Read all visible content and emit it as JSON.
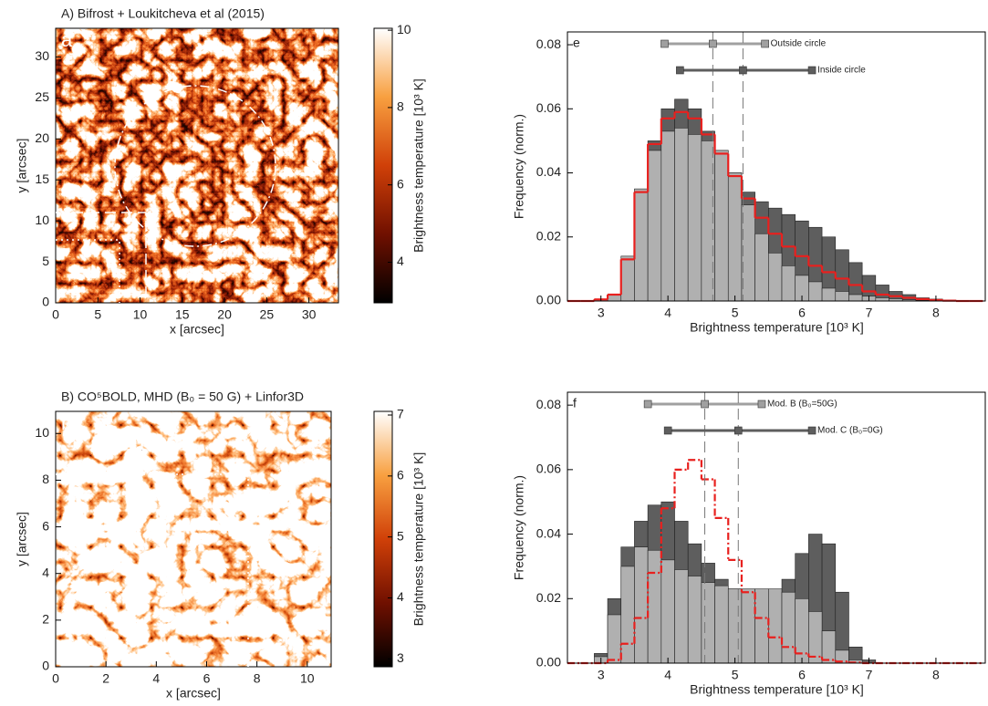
{
  "chart_data": [
    {
      "type": "image",
      "title": "A) Bifrost + Loukitcheva et al (2015)",
      "panel_label": "a",
      "xlabel": "x [arcsec]",
      "ylabel": "y [arcsec]",
      "xlim": [
        0,
        33.5
      ],
      "ylim": [
        0,
        33.5
      ],
      "xticks": [
        0,
        5,
        10,
        15,
        20,
        25,
        30
      ],
      "yticks": [
        0,
        5,
        10,
        15,
        20,
        25,
        30
      ],
      "colorbar_label": "Brightness temperature [10³ K]",
      "clim": [
        2.95,
        10.05
      ],
      "cticks": [
        4,
        6,
        8,
        10
      ]
    },
    {
      "type": "histogram",
      "panel_label": "e",
      "xlabel": "Brightness temperature [10³ K]",
      "ylabel": "Frequency (norm.)",
      "xlim": [
        2.5,
        8.75
      ],
      "ylim": [
        0,
        0.084
      ],
      "xticks": [
        3,
        4,
        5,
        6,
        7,
        8
      ],
      "yticks": [
        {
          "value": 0,
          "label": "0.00"
        },
        {
          "value": 0.02,
          "label": "0.02"
        },
        {
          "value": 0.04,
          "label": "0.04"
        },
        {
          "value": 0.06,
          "label": "0.06"
        },
        {
          "value": 0.08,
          "label": "0.08"
        }
      ],
      "bins": [
        2.5,
        2.7,
        2.9,
        3.1,
        3.3,
        3.5,
        3.7,
        3.9,
        4.1,
        4.3,
        4.5,
        4.7,
        4.9,
        5.1,
        5.3,
        5.5,
        5.7,
        5.9,
        6.1,
        6.3,
        6.5,
        6.7,
        6.9,
        7.1,
        7.3,
        7.5,
        7.7,
        7.9,
        8.1,
        8.3,
        8.5,
        8.7
      ],
      "series": [
        {
          "color": "#5e5e5e",
          "style": "bars",
          "values": [
            0,
            0,
            0.0005,
            0.002,
            0.012,
            0.033,
            0.05,
            0.06,
            0.063,
            0.06,
            0.053,
            0.047,
            0.04,
            0.034,
            0.031,
            0.029,
            0.027,
            0.025,
            0.023,
            0.02,
            0.016,
            0.012,
            0.008,
            0.005,
            0.003,
            0.002,
            0.001,
            0.0006,
            0.0003,
            0.0001,
            0
          ]
        },
        {
          "color": "#b0b0b0",
          "style": "bars",
          "values": [
            0,
            0,
            0.0005,
            0.002,
            0.014,
            0.035,
            0.047,
            0.053,
            0.054,
            0.052,
            0.05,
            0.047,
            0.04,
            0.03,
            0.021,
            0.015,
            0.011,
            0.008,
            0.006,
            0.004,
            0.003,
            0.002,
            0.0015,
            0.001,
            0.0007,
            0.0004,
            0.0002,
            0.0001,
            0,
            0,
            0
          ]
        },
        {
          "color": "#e8201e",
          "style": "step",
          "dash": "solid",
          "values": [
            0,
            0,
            0.0005,
            0.002,
            0.013,
            0.034,
            0.049,
            0.057,
            0.059,
            0.057,
            0.052,
            0.046,
            0.039,
            0.032,
            0.026,
            0.021,
            0.017,
            0.014,
            0.011,
            0.009,
            0.007,
            0.005,
            0.003,
            0.002,
            0.0015,
            0.001,
            0.0006,
            0.0003,
            0.0001,
            0,
            0
          ]
        }
      ],
      "ranges": [
        {
          "label": "Outside circle",
          "color": "#a0a0a0",
          "values": [
            3.95,
            4.67,
            5.45
          ]
        },
        {
          "label": "Inside circle",
          "color": "#5e5e5e",
          "values": [
            4.18,
            5.12,
            6.15
          ]
        }
      ]
    },
    {
      "type": "image",
      "title": "B) CO⁵BOLD, MHD (B₀ = 50 G) + Linfor3D",
      "panel_label": "b",
      "xlabel": "x [arcsec]",
      "ylabel": "y [arcsec]",
      "xlim": [
        0,
        10.95
      ],
      "ylim": [
        0,
        10.95
      ],
      "xticks": [
        0,
        2,
        4,
        6,
        8,
        10
      ],
      "yticks": [
        0,
        2,
        4,
        6,
        8,
        10
      ],
      "colorbar_label": "Brightness temperature [10³ K]",
      "clim": [
        2.87,
        7.06
      ],
      "cticks": [
        3,
        4,
        5,
        6,
        7
      ]
    },
    {
      "type": "histogram",
      "panel_label": "f",
      "xlabel": "Brightness temperature [10³ K]",
      "ylabel": "Frequency (norm.)",
      "xlim": [
        2.5,
        8.75
      ],
      "ylim": [
        0,
        0.084
      ],
      "xticks": [
        3,
        4,
        5,
        6,
        7,
        8
      ],
      "yticks": [
        {
          "value": 0,
          "label": "0.00"
        },
        {
          "value": 0.02,
          "label": "0.02"
        },
        {
          "value": 0.04,
          "label": "0.04"
        },
        {
          "value": 0.06,
          "label": "0.06"
        },
        {
          "value": 0.08,
          "label": "0.08"
        }
      ],
      "bins": [
        2.5,
        2.7,
        2.9,
        3.1,
        3.3,
        3.5,
        3.7,
        3.9,
        4.1,
        4.3,
        4.5,
        4.7,
        4.9,
        5.1,
        5.3,
        5.5,
        5.7,
        5.9,
        6.1,
        6.3,
        6.5,
        6.7,
        6.9,
        7.1,
        7.3,
        7.5,
        7.7,
        7.9,
        8.1,
        8.3,
        8.5,
        8.7
      ],
      "series": [
        {
          "color": "#5e5e5e",
          "style": "bars",
          "values": [
            0,
            0,
            0.003,
            0.02,
            0.036,
            0.044,
            0.049,
            0.05,
            0.044,
            0.037,
            0.031,
            0.026,
            0.023,
            0.022,
            0.021,
            0.022,
            0.026,
            0.034,
            0.04,
            0.037,
            0.022,
            0.005,
            0.001,
            0,
            0,
            0,
            0,
            0,
            0,
            0,
            0
          ]
        },
        {
          "color": "#b0b0b0",
          "style": "bars",
          "values": [
            0,
            0,
            0.002,
            0.015,
            0.03,
            0.036,
            0.035,
            0.032,
            0.029,
            0.027,
            0.025,
            0.024,
            0.023,
            0.023,
            0.023,
            0.023,
            0.022,
            0.02,
            0.016,
            0.01,
            0.004,
            0.001,
            0,
            0,
            0,
            0,
            0,
            0,
            0,
            0,
            0
          ]
        },
        {
          "color": "#e8201e",
          "style": "step",
          "dash": "dashdot",
          "values": [
            0,
            0,
            0,
            0.001,
            0.006,
            0.014,
            0.028,
            0.048,
            0.06,
            0.063,
            0.057,
            0.045,
            0.032,
            0.022,
            0.014,
            0.008,
            0.005,
            0.003,
            0.002,
            0.001,
            0.0005,
            0.0002,
            0,
            0,
            0,
            0,
            0,
            0,
            0,
            0,
            0
          ]
        }
      ],
      "ranges": [
        {
          "label": "Mod. B (B₀=50G)",
          "color": "#a0a0a0",
          "values": [
            3.7,
            4.55,
            5.4
          ]
        },
        {
          "label": "Mod. C (B₀=0G)",
          "color": "#5e5e5e",
          "values": [
            4.0,
            5.05,
            6.15
          ]
        }
      ]
    }
  ]
}
